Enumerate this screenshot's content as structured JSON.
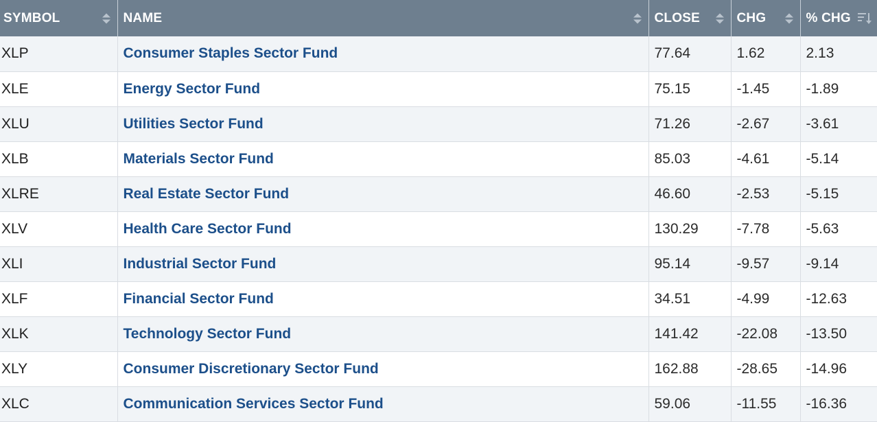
{
  "headers": {
    "symbol": "SYMBOL",
    "name": "NAME",
    "close": "CLOSE",
    "chg": "CHG",
    "pct_chg": "% CHG"
  },
  "rows": [
    {
      "symbol": "XLP",
      "name": "Consumer Staples Sector Fund",
      "close": "77.64",
      "chg": "1.62",
      "pct_chg": "2.13"
    },
    {
      "symbol": "XLE",
      "name": "Energy Sector Fund",
      "close": "75.15",
      "chg": "-1.45",
      "pct_chg": "-1.89"
    },
    {
      "symbol": "XLU",
      "name": "Utilities Sector Fund",
      "close": "71.26",
      "chg": "-2.67",
      "pct_chg": "-3.61"
    },
    {
      "symbol": "XLB",
      "name": "Materials Sector Fund",
      "close": "85.03",
      "chg": "-4.61",
      "pct_chg": "-5.14"
    },
    {
      "symbol": "XLRE",
      "name": "Real Estate Sector Fund",
      "close": "46.60",
      "chg": "-2.53",
      "pct_chg": "-5.15"
    },
    {
      "symbol": "XLV",
      "name": "Health Care Sector Fund",
      "close": "130.29",
      "chg": "-7.78",
      "pct_chg": "-5.63"
    },
    {
      "symbol": "XLI",
      "name": "Industrial Sector Fund",
      "close": "95.14",
      "chg": "-9.57",
      "pct_chg": "-9.14"
    },
    {
      "symbol": "XLF",
      "name": "Financial Sector Fund",
      "close": "34.51",
      "chg": "-4.99",
      "pct_chg": "-12.63"
    },
    {
      "symbol": "XLK",
      "name": "Technology Sector Fund",
      "close": "141.42",
      "chg": "-22.08",
      "pct_chg": "-13.50"
    },
    {
      "symbol": "XLY",
      "name": "Consumer Discretionary Sector Fund",
      "close": "162.88",
      "chg": "-28.65",
      "pct_chg": "-14.96"
    },
    {
      "symbol": "XLC",
      "name": "Communication Services Sector Fund",
      "close": "59.06",
      "chg": "-11.55",
      "pct_chg": "-16.36"
    }
  ],
  "colors": {
    "header_bg": "#6e7f8f",
    "link": "#1c4f8a",
    "row_alt": "#f1f4f7"
  },
  "icons": {
    "column_sort": "sort-arrows-icon",
    "active_sort": "sort-descending-icon"
  }
}
